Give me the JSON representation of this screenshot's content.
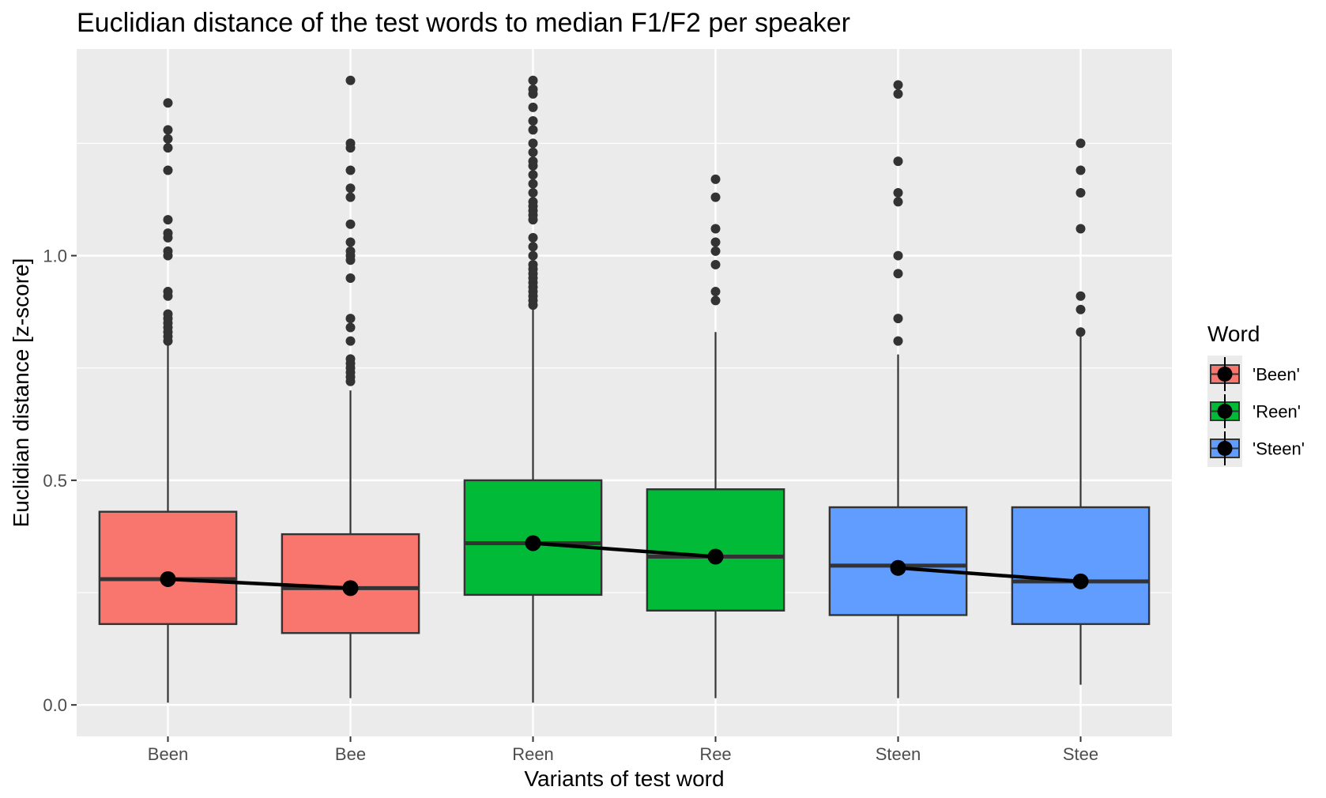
{
  "chart_data": {
    "type": "box",
    "title": "Euclidian distance of the test words to median F1/F2 per speaker",
    "xlabel": "Variants of test word",
    "ylabel": "Euclidian distance [z-score]",
    "ylim": [
      -0.07,
      1.46
    ],
    "yticks": [
      0.0,
      0.5,
      1.0
    ],
    "ytick_labels": [
      "0.0",
      "0.5",
      "1.0"
    ],
    "categories": [
      "Been",
      "Bee",
      "Reen",
      "Ree",
      "Steen",
      "Stee"
    ],
    "group": [
      "'Been'",
      "'Been'",
      "'Reen'",
      "'Reen'",
      "'Steen'",
      "'Steen'"
    ],
    "boxes": [
      {
        "min": 0.005,
        "q1": 0.18,
        "median": 0.28,
        "q3": 0.43,
        "max": 0.8,
        "outliers": [
          0.81,
          0.82,
          0.83,
          0.84,
          0.85,
          0.86,
          0.87,
          0.91,
          0.92,
          1.0,
          1.01,
          1.04,
          1.05,
          1.08,
          1.19,
          1.24,
          1.26,
          1.28,
          1.34
        ]
      },
      {
        "min": 0.015,
        "q1": 0.16,
        "median": 0.26,
        "q3": 0.38,
        "max": 0.7,
        "outliers": [
          0.72,
          0.73,
          0.74,
          0.75,
          0.76,
          0.77,
          0.81,
          0.84,
          0.86,
          0.95,
          0.99,
          1.0,
          1.01,
          1.03,
          1.07,
          1.13,
          1.15,
          1.19,
          1.24,
          1.25,
          1.39
        ]
      },
      {
        "min": 0.005,
        "q1": 0.245,
        "median": 0.36,
        "q3": 0.5,
        "max": 0.88,
        "outliers": [
          0.89,
          0.9,
          0.91,
          0.92,
          0.93,
          0.94,
          0.95,
          0.96,
          0.97,
          0.98,
          1.0,
          1.02,
          1.04,
          1.08,
          1.09,
          1.1,
          1.11,
          1.12,
          1.14,
          1.16,
          1.18,
          1.2,
          1.21,
          1.23,
          1.25,
          1.28,
          1.3,
          1.33,
          1.36,
          1.37,
          1.39
        ]
      },
      {
        "min": 0.015,
        "q1": 0.21,
        "median": 0.33,
        "q3": 0.48,
        "max": 0.83,
        "outliers": [
          0.9,
          0.92,
          0.98,
          1.01,
          1.03,
          1.06,
          1.13,
          1.17
        ]
      },
      {
        "min": 0.015,
        "q1": 0.2,
        "median": 0.31,
        "q3": 0.44,
        "max": 0.78,
        "outliers": [
          0.81,
          0.86,
          0.96,
          1.0,
          1.12,
          1.14,
          1.21,
          1.36,
          1.38
        ]
      },
      {
        "min": 0.045,
        "q1": 0.18,
        "median": 0.275,
        "q3": 0.44,
        "max": 0.82,
        "outliers": [
          0.83,
          0.88,
          0.91,
          1.06,
          1.14,
          1.19,
          1.25
        ]
      }
    ],
    "mean_line": {
      "values": [
        0.28,
        0.26,
        0.36,
        0.33,
        0.305,
        0.275
      ],
      "color": "#000000"
    },
    "legend": {
      "title": "Word",
      "position": "right",
      "entries": [
        {
          "label": "'Been'",
          "color": "#F8766D"
        },
        {
          "label": "'Reen'",
          "color": "#00BA38"
        },
        {
          "label": "'Steen'",
          "color": "#619CFF"
        }
      ]
    },
    "grid": true,
    "panel_background": "#EBEBEB"
  }
}
